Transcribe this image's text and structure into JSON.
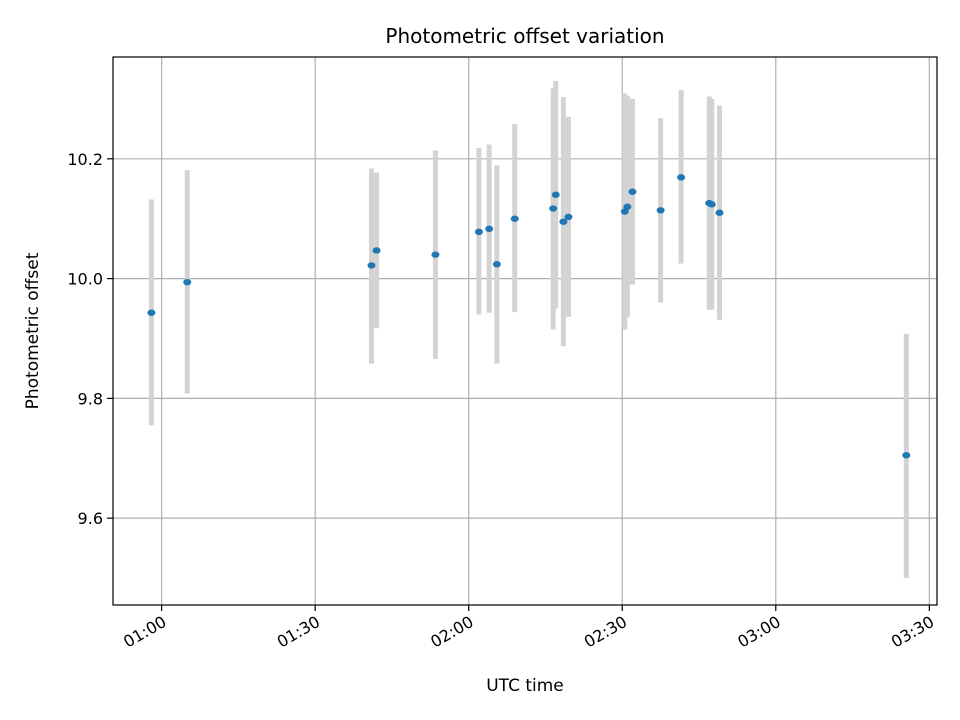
{
  "chart_data": {
    "type": "scatter",
    "title": "Photometric offset variation",
    "xlabel": "UTC time",
    "ylabel": "Photometric offset",
    "x_unit": "UTC time of day (HH:MM)",
    "xlim": [
      "00:50:30",
      "03:31:30"
    ],
    "ylim": [
      9.455,
      10.37
    ],
    "grid": true,
    "x_ticks": [
      {
        "value": "01:00",
        "label": "01:00"
      },
      {
        "value": "01:30",
        "label": "01:30"
      },
      {
        "value": "02:00",
        "label": "02:00"
      },
      {
        "value": "02:30",
        "label": "02:30"
      },
      {
        "value": "03:00",
        "label": "03:00"
      },
      {
        "value": "03:30",
        "label": "03:30"
      }
    ],
    "y_ticks": [
      {
        "value": 9.6,
        "label": "9.6"
      },
      {
        "value": 9.8,
        "label": "9.8"
      },
      {
        "value": 10.0,
        "label": "10.0"
      },
      {
        "value": 10.2,
        "label": "10.2"
      }
    ],
    "colors": {
      "point": "#1f77b4",
      "errorbar": "#d3d3d3",
      "grid": "#b0b0b0"
    },
    "points": [
      {
        "time": "00:58:00",
        "y": 9.943,
        "lo": 9.755,
        "hi": 10.132
      },
      {
        "time": "01:05:00",
        "y": 9.994,
        "lo": 9.808,
        "hi": 10.181
      },
      {
        "time": "01:41:00",
        "y": 10.022,
        "lo": 9.858,
        "hi": 10.184
      },
      {
        "time": "01:42:00",
        "y": 10.047,
        "lo": 9.917,
        "hi": 10.177
      },
      {
        "time": "01:53:30",
        "y": 10.04,
        "lo": 9.866,
        "hi": 10.214
      },
      {
        "time": "02:02:00",
        "y": 10.078,
        "lo": 9.94,
        "hi": 10.218
      },
      {
        "time": "02:04:00",
        "y": 10.083,
        "lo": 9.943,
        "hi": 10.224
      },
      {
        "time": "02:05:30",
        "y": 10.024,
        "lo": 9.858,
        "hi": 10.189
      },
      {
        "time": "02:09:00",
        "y": 10.1,
        "lo": 9.944,
        "hi": 10.258
      },
      {
        "time": "02:16:30",
        "y": 10.117,
        "lo": 9.915,
        "hi": 10.318
      },
      {
        "time": "02:17:00",
        "y": 10.14,
        "lo": 9.95,
        "hi": 10.33
      },
      {
        "time": "02:18:30",
        "y": 10.095,
        "lo": 9.887,
        "hi": 10.303
      },
      {
        "time": "02:19:30",
        "y": 10.103,
        "lo": 9.936,
        "hi": 10.27
      },
      {
        "time": "02:30:30",
        "y": 10.112,
        "lo": 9.915,
        "hi": 10.309
      },
      {
        "time": "02:31:00",
        "y": 10.12,
        "lo": 9.935,
        "hi": 10.305
      },
      {
        "time": "02:32:00",
        "y": 10.145,
        "lo": 9.99,
        "hi": 10.3
      },
      {
        "time": "02:37:30",
        "y": 10.114,
        "lo": 9.96,
        "hi": 10.268
      },
      {
        "time": "02:41:30",
        "y": 10.169,
        "lo": 10.025,
        "hi": 10.315
      },
      {
        "time": "02:47:00",
        "y": 10.126,
        "lo": 9.948,
        "hi": 10.304
      },
      {
        "time": "02:47:30",
        "y": 10.124,
        "lo": 9.948,
        "hi": 10.3
      },
      {
        "time": "02:49:00",
        "y": 10.11,
        "lo": 9.931,
        "hi": 10.289
      },
      {
        "time": "03:25:30",
        "y": 9.705,
        "lo": 9.5,
        "hi": 9.908
      }
    ]
  }
}
